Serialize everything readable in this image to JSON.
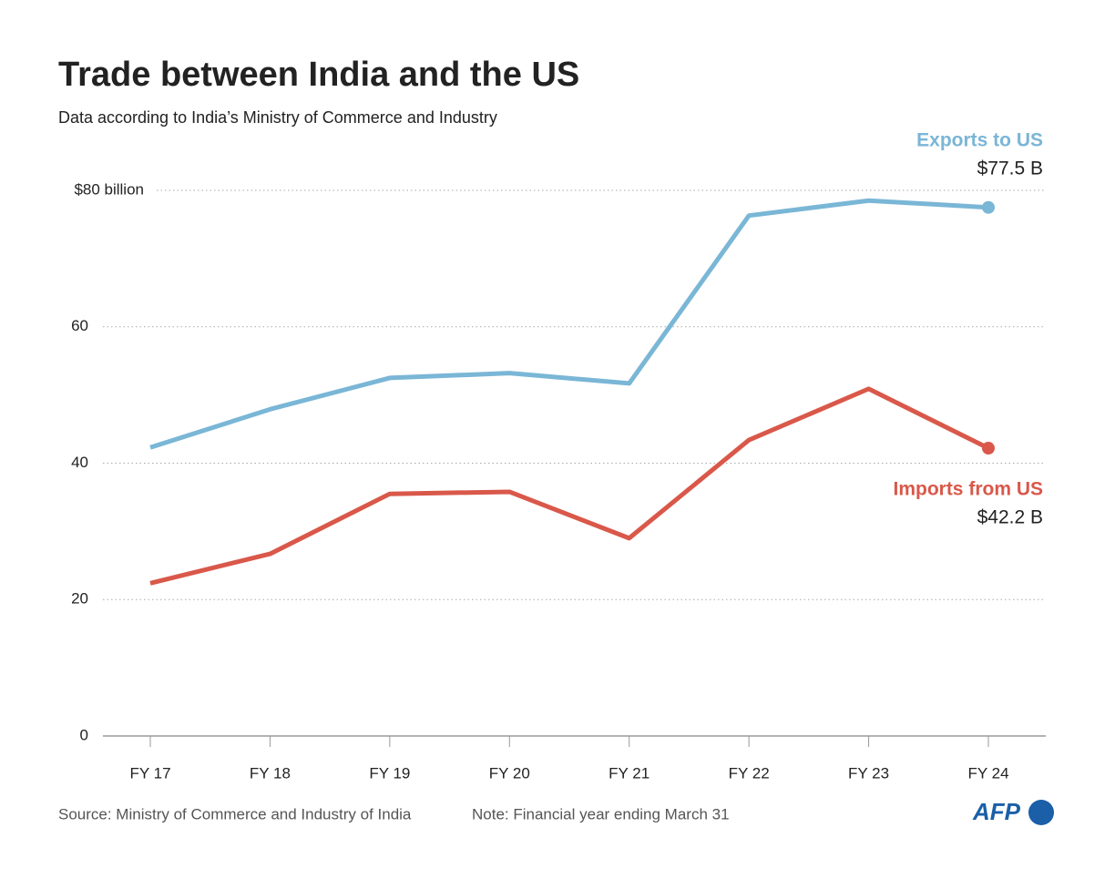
{
  "chart_data": {
    "type": "line",
    "title": "Trade between India and the US",
    "subtitle": "Data according to India’s Ministry of Commerce and Industry",
    "source": "Source: Ministry of Commerce and Industry of India",
    "note": "Note: Financial year ending March 31",
    "logo": "AFP",
    "categories": [
      "FY 17",
      "FY 18",
      "FY 19",
      "FY 20",
      "FY 21",
      "FY 22",
      "FY 23",
      "FY 24"
    ],
    "series": [
      {
        "name": "Exports to US",
        "color": "#7ab6d6",
        "values": [
          42.3,
          47.9,
          52.5,
          53.2,
          51.7,
          76.3,
          78.5,
          77.5
        ],
        "value_labels": [
          null,
          null,
          null,
          null,
          null,
          null,
          null,
          "$77.5 B"
        ]
      },
      {
        "name": "Imports from US",
        "color": "#d9584a",
        "values": [
          22.4,
          26.7,
          35.5,
          35.8,
          29.0,
          43.4,
          50.9,
          42.2
        ],
        "value_labels": [
          null,
          null,
          null,
          null,
          null,
          null,
          null,
          "$42.2 B"
        ]
      }
    ],
    "ylim": [
      0,
      80
    ],
    "yticks": [
      0,
      20,
      40,
      60,
      {
        "value": 80,
        "label": "$80 billion"
      }
    ],
    "grid": true
  }
}
